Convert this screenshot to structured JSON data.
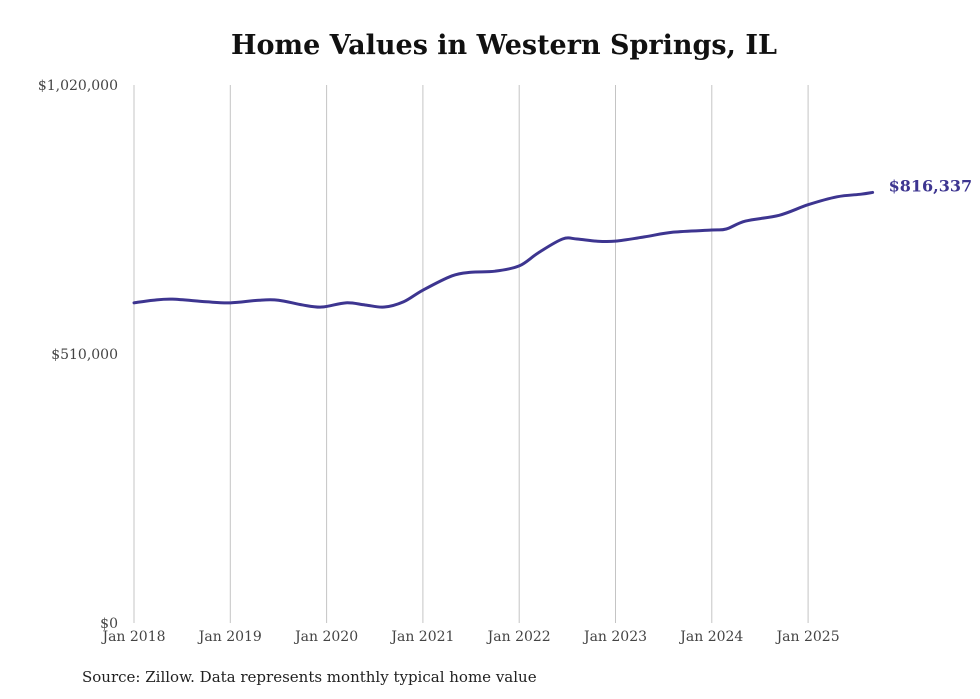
{
  "chart_data": {
    "type": "line",
    "title": "Home Values in Western Springs, IL",
    "xlabel": "",
    "ylabel": "",
    "source": "Source: Zillow. Data represents monthly typical home value",
    "ylim": [
      0,
      1020000
    ],
    "xlim": [
      2018.0,
      2025.67
    ],
    "y_ticks": [
      {
        "value": 0,
        "label": "$0"
      },
      {
        "value": 510000,
        "label": "$510,000"
      },
      {
        "value": 1020000,
        "label": "$1,020,000"
      }
    ],
    "x_ticks": [
      {
        "value": 2018,
        "label": "Jan 2018"
      },
      {
        "value": 2019,
        "label": "Jan 2019"
      },
      {
        "value": 2020,
        "label": "Jan 2020"
      },
      {
        "value": 2021,
        "label": "Jan 2021"
      },
      {
        "value": 2022,
        "label": "Jan 2022"
      },
      {
        "value": 2023,
        "label": "Jan 2023"
      },
      {
        "value": 2024,
        "label": "Jan 2024"
      },
      {
        "value": 2025,
        "label": "Jan 2025"
      }
    ],
    "grid": "vertical",
    "color": "#3d3590",
    "series": [
      {
        "name": "Typical home value",
        "x": [
          2018.0,
          2018.2,
          2018.4,
          2018.75,
          2019.0,
          2019.3,
          2019.5,
          2019.75,
          2019.95,
          2020.2,
          2020.4,
          2020.6,
          2020.8,
          2021.0,
          2021.3,
          2021.5,
          2021.75,
          2022.0,
          2022.2,
          2022.45,
          2022.6,
          2022.8,
          2023.0,
          2023.3,
          2023.6,
          2024.0,
          2024.15,
          2024.35,
          2024.7,
          2025.0,
          2025.3,
          2025.55,
          2025.67
        ],
        "values": [
          607000,
          612000,
          614000,
          609000,
          607000,
          612000,
          612000,
          603000,
          599000,
          607000,
          603000,
          599000,
          609000,
          631000,
          658000,
          665000,
          667000,
          677000,
          702000,
          728000,
          728000,
          724000,
          724000,
          732000,
          741000,
          745000,
          747000,
          762000,
          773000,
          793000,
          808000,
          813000,
          816337
        ]
      }
    ],
    "end_label": "$816,337"
  }
}
